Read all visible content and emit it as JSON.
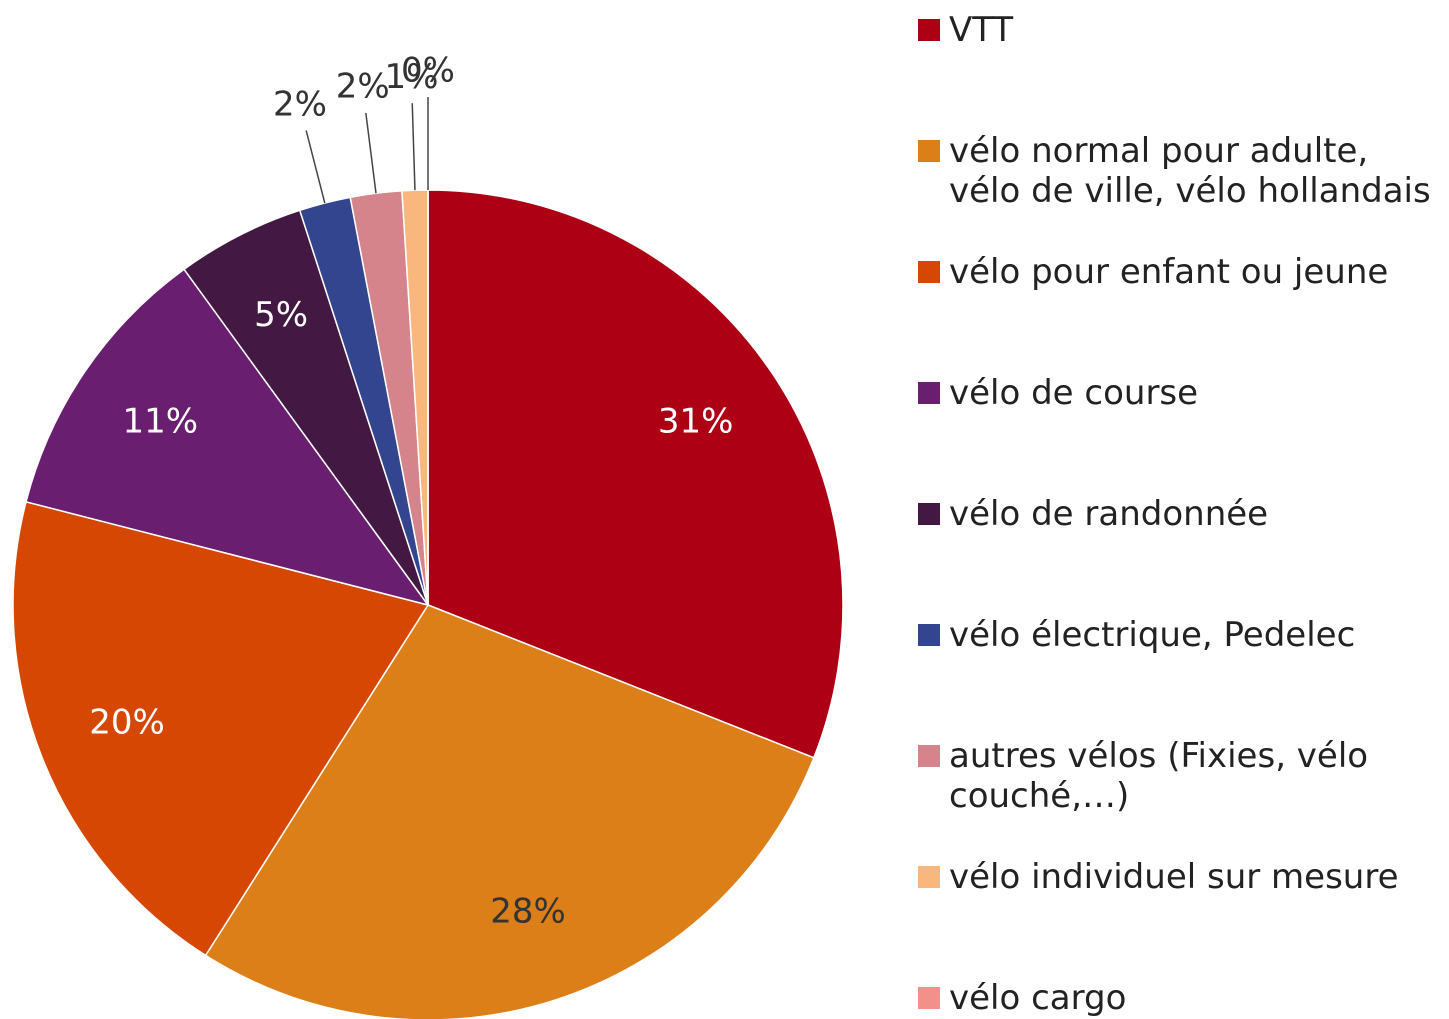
{
  "chart_data": {
    "type": "pie",
    "categories": [
      "VTT",
      "vélo normal pour adulte, vélo de ville, vélo hollandais",
      "vélo pour enfant ou jeune",
      "vélo de course",
      "vélo de randonnée",
      "vélo électrique, Pedelec",
      "autres vélos (Fixies, vélo couché,…)",
      "vélo individuel sur mesure",
      "vélo cargo"
    ],
    "values": [
      31,
      28,
      20,
      11,
      5,
      2,
      2,
      1,
      0
    ],
    "value_labels": [
      "31%",
      "28%",
      "20%",
      "11%",
      "5%",
      "2%",
      "2%",
      "1%",
      "0%"
    ],
    "colors": [
      "#ae0015",
      "#dc7f18",
      "#d64704",
      "#6a1e6f",
      "#431944",
      "#34458f",
      "#d4848a",
      "#f9b77e",
      "#f19189"
    ],
    "legend": "right"
  }
}
